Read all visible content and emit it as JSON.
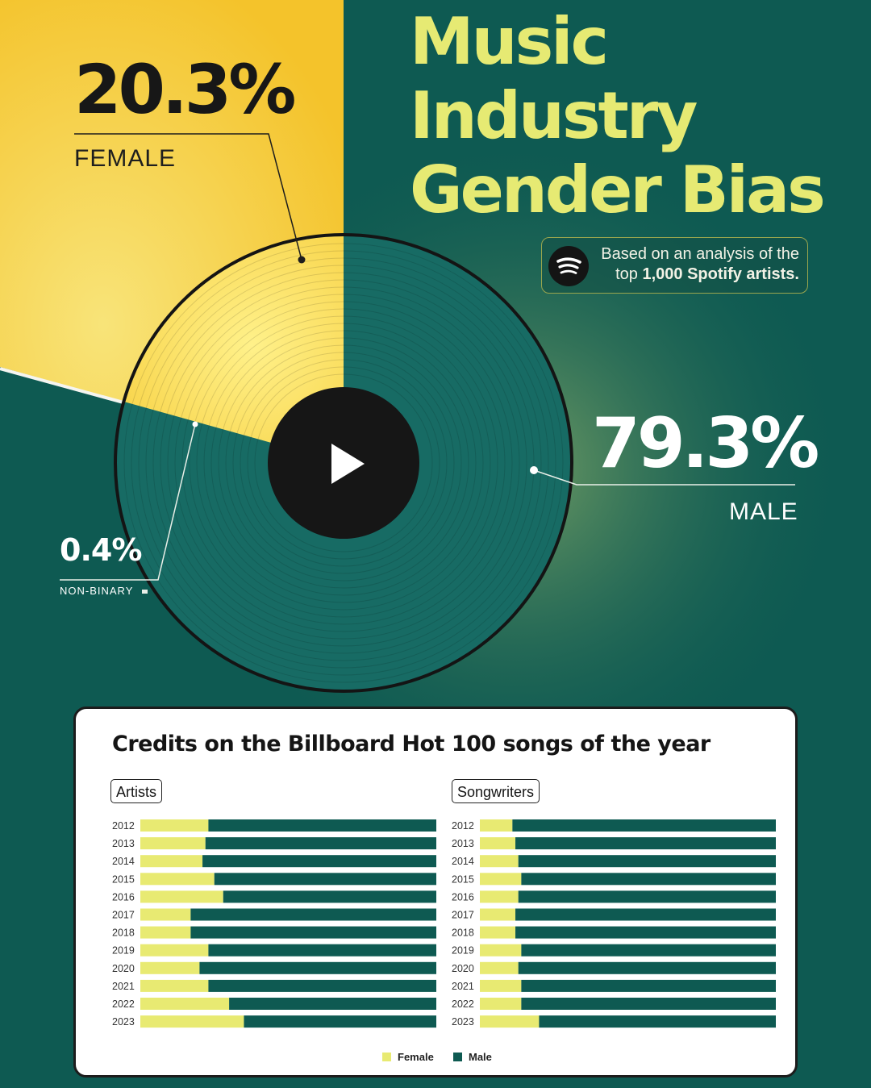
{
  "title": {
    "line1": "Music",
    "line2": "Industry",
    "line3": "Gender Bias"
  },
  "badge": {
    "icon": "spotify-logo-icon",
    "prefix": "Based on an analysis of the",
    "top": "top",
    "bold": "1,000 Spotify artists."
  },
  "colors": {
    "female": "#e8ea72",
    "male": "#0e5a52",
    "yellow_bg": "#f5c933",
    "green_bg": "#0e5a52"
  },
  "donut": {
    "female": {
      "value": "20.3%",
      "label": "FEMALE"
    },
    "male": {
      "value": "79.3%",
      "label": "MALE"
    },
    "nonbinary": {
      "value": "0.4%",
      "label": "NON-BINARY"
    },
    "center_icon": "play-icon"
  },
  "chart_data": [
    {
      "type": "pie",
      "title": "",
      "categories": [
        "FEMALE",
        "MALE",
        "NON-BINARY"
      ],
      "values": [
        20.3,
        79.3,
        0.4
      ]
    },
    {
      "type": "bar",
      "title": "Credits on the Billboard Hot 100 songs of the year",
      "panel": "Artists",
      "orientation": "horizontal-stacked-100",
      "categories": [
        "2012",
        "2013",
        "2014",
        "2015",
        "2016",
        "2017",
        "2018",
        "2019",
        "2020",
        "2021",
        "2022",
        "2023"
      ],
      "series": [
        {
          "name": "Female",
          "values": [
            23,
            22,
            21,
            25,
            28,
            17,
            17,
            23,
            20,
            23,
            30,
            35
          ]
        },
        {
          "name": "Male",
          "values": [
            77,
            78,
            79,
            75,
            72,
            83,
            83,
            77,
            80,
            77,
            70,
            65
          ]
        }
      ],
      "xlim": [
        0,
        100
      ],
      "legend": "bottom-center"
    },
    {
      "type": "bar",
      "panel": "Songwriters",
      "orientation": "horizontal-stacked-100",
      "categories": [
        "2012",
        "2013",
        "2014",
        "2015",
        "2016",
        "2017",
        "2018",
        "2019",
        "2020",
        "2021",
        "2022",
        "2023"
      ],
      "series": [
        {
          "name": "Female",
          "values": [
            11,
            12,
            13,
            14,
            13,
            12,
            12,
            14,
            13,
            14,
            14,
            20
          ]
        },
        {
          "name": "Male",
          "values": [
            89,
            88,
            87,
            86,
            87,
            88,
            88,
            86,
            87,
            86,
            86,
            80
          ]
        }
      ],
      "xlim": [
        0,
        100
      ]
    }
  ]
}
